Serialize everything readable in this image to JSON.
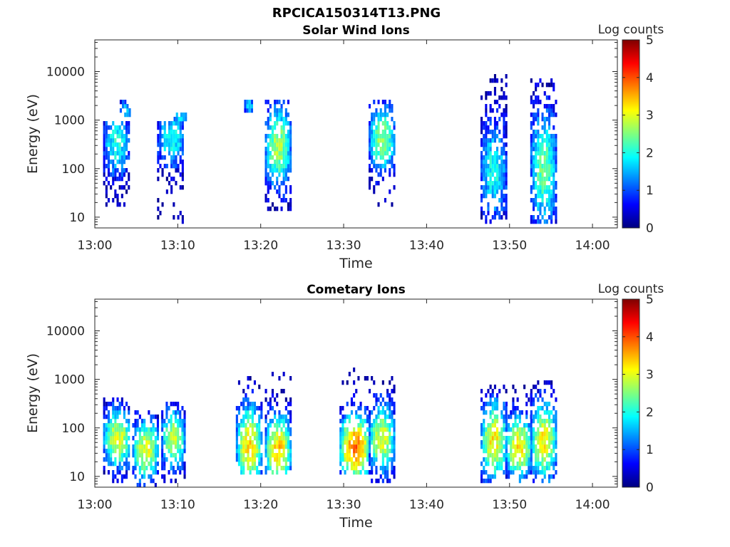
{
  "figure": {
    "title": "RPCICA150314T13.PNG"
  },
  "colormap": {
    "stops": [
      "#00007f",
      "#0000ff",
      "#007fff",
      "#00ffff",
      "#7fff7f",
      "#ffff00",
      "#ff7f00",
      "#ff0000",
      "#7f0000"
    ]
  },
  "chart_data": [
    {
      "type": "heatmap",
      "title": "Solar Wind Ions",
      "xlabel": "Time",
      "ylabel": "Energy (eV)",
      "x_ticks": [
        "13:00",
        "13:10",
        "13:20",
        "13:30",
        "13:40",
        "13:50",
        "14:00"
      ],
      "x_range_minutes": [
        0,
        63
      ],
      "y_scale": "log",
      "y_range_eV": [
        6,
        45000
      ],
      "y_ticks": [
        10,
        100,
        1000,
        10000
      ],
      "colorbar": {
        "label": "Log counts",
        "range": [
          0,
          5
        ],
        "ticks": [
          0,
          1,
          2,
          3,
          4,
          5
        ]
      },
      "blobs": [
        {
          "t_start": 1.0,
          "t_end": 4.0,
          "e_low": 10,
          "e_high": 900,
          "peak_log_counts": 2.0,
          "hot_e_low": 150,
          "hot_e_high": 700
        },
        {
          "t_start": 3.0,
          "t_end": 4.2,
          "e_low": 1200,
          "e_high": 2500,
          "peak_log_counts": 1.8,
          "hot_e_low": 1300,
          "hot_e_high": 2000
        },
        {
          "t_start": 7.5,
          "t_end": 10.7,
          "e_low": 8,
          "e_high": 900,
          "peak_log_counts": 2.0,
          "hot_e_low": 250,
          "hot_e_high": 700
        },
        {
          "t_start": 9.5,
          "t_end": 11.0,
          "e_low": 1000,
          "e_high": 1400,
          "peak_log_counts": 1.8,
          "hot_e_low": 1000,
          "hot_e_high": 1300
        },
        {
          "t_start": 18.0,
          "t_end": 19.0,
          "e_low": 1500,
          "e_high": 2600,
          "peak_log_counts": 1.8,
          "hot_e_low": 1600,
          "hot_e_high": 2400
        },
        {
          "t_start": 20.5,
          "t_end": 23.5,
          "e_low": 14,
          "e_high": 2500,
          "peak_log_counts": 2.7,
          "hot_e_low": 100,
          "hot_e_high": 800
        },
        {
          "t_start": 33.0,
          "t_end": 36.0,
          "e_low": 14,
          "e_high": 2500,
          "peak_log_counts": 2.6,
          "hot_e_low": 200,
          "hot_e_high": 800
        },
        {
          "t_start": 46.5,
          "t_end": 49.5,
          "e_low": 8,
          "e_high": 9000,
          "peak_log_counts": 2.0,
          "hot_e_low": 30,
          "hot_e_high": 300
        },
        {
          "t_start": 52.5,
          "t_end": 55.5,
          "e_low": 8,
          "e_high": 8000,
          "peak_log_counts": 2.4,
          "hot_e_low": 20,
          "hot_e_high": 500
        }
      ]
    },
    {
      "type": "heatmap",
      "title": "Cometary Ions",
      "xlabel": "Time",
      "ylabel": "Energy (eV)",
      "x_ticks": [
        "13:00",
        "13:10",
        "13:20",
        "13:30",
        "13:40",
        "13:50",
        "14:00"
      ],
      "x_range_minutes": [
        0,
        63
      ],
      "y_scale": "log",
      "y_range_eV": [
        6,
        45000
      ],
      "y_ticks": [
        10,
        100,
        1000,
        10000
      ],
      "colorbar": {
        "label": "Log counts",
        "range": [
          0,
          5
        ],
        "ticks": [
          0,
          1,
          2,
          3,
          4,
          5
        ]
      },
      "blobs": [
        {
          "t_start": 1.0,
          "t_end": 4.2,
          "e_low": 8,
          "e_high": 400,
          "peak_log_counts": 3.0,
          "hot_e_low": 30,
          "hot_e_high": 120
        },
        {
          "t_start": 4.5,
          "t_end": 7.5,
          "e_low": 6,
          "e_high": 250,
          "peak_log_counts": 3.0,
          "hot_e_low": 15,
          "hot_e_high": 80
        },
        {
          "t_start": 8.0,
          "t_end": 10.7,
          "e_low": 8,
          "e_high": 350,
          "peak_log_counts": 2.9,
          "hot_e_low": 30,
          "hot_e_high": 120
        },
        {
          "t_start": 17.0,
          "t_end": 20.0,
          "e_low": 10,
          "e_high": 1200,
          "peak_log_counts": 3.3,
          "hot_e_low": 15,
          "hot_e_high": 120
        },
        {
          "t_start": 20.5,
          "t_end": 23.5,
          "e_low": 10,
          "e_high": 1400,
          "peak_log_counts": 3.4,
          "hot_e_low": 15,
          "hot_e_high": 80
        },
        {
          "t_start": 29.5,
          "t_end": 33.0,
          "e_low": 12,
          "e_high": 1800,
          "peak_log_counts": 3.9,
          "hot_e_low": 20,
          "hot_e_high": 80
        },
        {
          "t_start": 33.0,
          "t_end": 36.0,
          "e_low": 8,
          "e_high": 1200,
          "peak_log_counts": 3.0,
          "hot_e_low": 30,
          "hot_e_high": 120
        },
        {
          "t_start": 46.5,
          "t_end": 49.5,
          "e_low": 8,
          "e_high": 800,
          "peak_log_counts": 3.2,
          "hot_e_low": 20,
          "hot_e_high": 150
        },
        {
          "t_start": 49.5,
          "t_end": 52.5,
          "e_low": 8,
          "e_high": 800,
          "peak_log_counts": 3.3,
          "hot_e_low": 20,
          "hot_e_high": 80
        },
        {
          "t_start": 52.5,
          "t_end": 55.5,
          "e_low": 8,
          "e_high": 1000,
          "peak_log_counts": 3.2,
          "hot_e_low": 20,
          "hot_e_high": 150
        }
      ]
    }
  ]
}
